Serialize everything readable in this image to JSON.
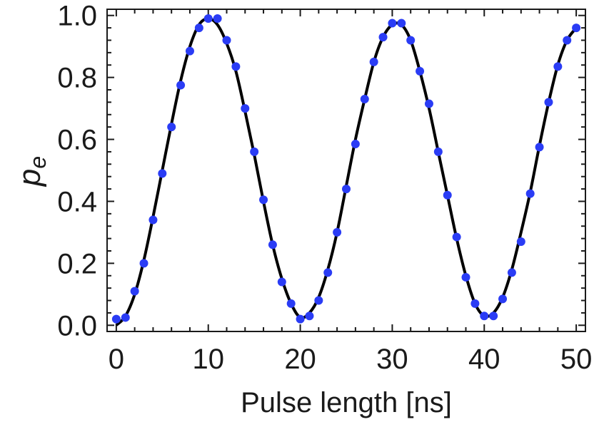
{
  "chart_data": {
    "type": "scatter",
    "title": "",
    "xlabel": "Pulse length [ns]",
    "ylabel": "p",
    "ylabel_subscript": "e",
    "xlim": [
      -1,
      51
    ],
    "ylim": [
      -0.02,
      1.02
    ],
    "xticks": [
      0,
      10,
      20,
      30,
      40,
      50
    ],
    "xtick_labels": [
      "0",
      "10",
      "20",
      "30",
      "40",
      "50"
    ],
    "yticks": [
      0.0,
      0.2,
      0.4,
      0.6,
      0.8,
      1.0
    ],
    "ytick_labels": [
      "0.0",
      "0.2",
      "0.4",
      "0.6",
      "0.8",
      "1.0"
    ],
    "grid": false,
    "legend": "none",
    "colors": {
      "points": "#2a3cf5",
      "fit": "#000000",
      "axes": "#1a1a1a"
    },
    "series": [
      {
        "kind": "points",
        "x": [
          0,
          1,
          2,
          3,
          4,
          5,
          6,
          7,
          8,
          9,
          10,
          11,
          12,
          13,
          14,
          15,
          16,
          17,
          18,
          19,
          20,
          21,
          22,
          23,
          24,
          25,
          26,
          27,
          28,
          29,
          30,
          31,
          32,
          33,
          34,
          35,
          36,
          37,
          38,
          39,
          40,
          41,
          42,
          43,
          44,
          45,
          46,
          47,
          48,
          49,
          50
        ],
        "y": [
          0.02,
          0.025,
          0.11,
          0.2,
          0.34,
          0.49,
          0.64,
          0.775,
          0.885,
          0.96,
          0.99,
          0.99,
          0.92,
          0.835,
          0.7,
          0.56,
          0.405,
          0.26,
          0.14,
          0.07,
          0.02,
          0.03,
          0.08,
          0.17,
          0.3,
          0.44,
          0.585,
          0.73,
          0.85,
          0.93,
          0.975,
          0.975,
          0.92,
          0.82,
          0.715,
          0.56,
          0.42,
          0.285,
          0.155,
          0.07,
          0.03,
          0.03,
          0.085,
          0.17,
          0.27,
          0.425,
          0.575,
          0.72,
          0.835,
          0.92,
          0.96
        ]
      },
      {
        "kind": "fit-line",
        "x": [
          0,
          1,
          2,
          3,
          4,
          5,
          6,
          7,
          8,
          9,
          10,
          11,
          12,
          13,
          14,
          15,
          16,
          17,
          18,
          19,
          20,
          21,
          22,
          23,
          24,
          25,
          26,
          27,
          28,
          29,
          30,
          31,
          32,
          33,
          34,
          35,
          36,
          37,
          38,
          39,
          40,
          41,
          42,
          43,
          44,
          45,
          46,
          47,
          48,
          49,
          50
        ],
        "y": [
          0.0,
          0.03,
          0.1,
          0.21,
          0.35,
          0.5,
          0.65,
          0.79,
          0.9,
          0.97,
          0.99,
          0.97,
          0.91,
          0.82,
          0.69,
          0.55,
          0.4,
          0.26,
          0.15,
          0.07,
          0.025,
          0.04,
          0.09,
          0.18,
          0.3,
          0.45,
          0.6,
          0.73,
          0.85,
          0.93,
          0.97,
          0.97,
          0.92,
          0.82,
          0.7,
          0.56,
          0.42,
          0.28,
          0.16,
          0.07,
          0.03,
          0.04,
          0.09,
          0.18,
          0.3,
          0.43,
          0.58,
          0.72,
          0.84,
          0.92,
          0.96
        ]
      }
    ]
  }
}
